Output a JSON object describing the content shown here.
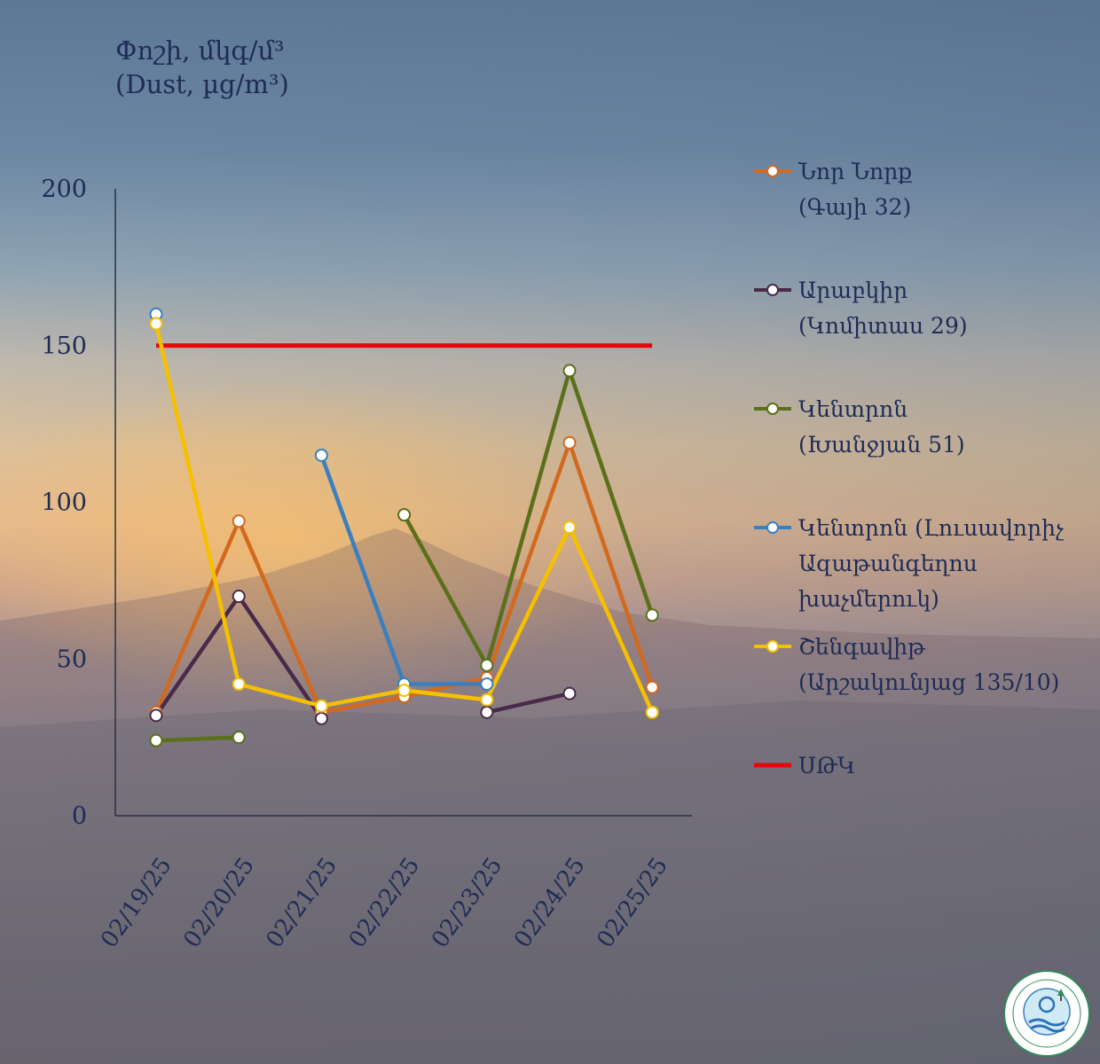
{
  "ylabel": {
    "line1": "Փոշի, մկգ/մ³",
    "line2": "(Dust, µg/m³)"
  },
  "chart_data": {
    "type": "line",
    "title": "",
    "ylabel": "Փոշի, մկգ/մ³ (Dust, µg/m³)",
    "xlabel": "",
    "ylim": [
      0,
      200
    ],
    "yticks": [
      0,
      50,
      100,
      150,
      200
    ],
    "categories": [
      "02/19/25",
      "02/20/25",
      "02/21/25",
      "02/22/25",
      "02/23/25",
      "02/24/25",
      "02/25/25"
    ],
    "grid": false,
    "legend_position": "right",
    "series": [
      {
        "name": "Նոր Նորք (Գայի 32)",
        "color": "#d2691e",
        "values": [
          33,
          94,
          33,
          38,
          44,
          119,
          41
        ]
      },
      {
        "name": "Արաբկիր (Կոմիտաս 29)",
        "color": "#4a2a4a",
        "values": [
          32,
          70,
          31,
          null,
          33,
          39,
          null
        ]
      },
      {
        "name": "Կենտրոն (Խանջյան 51)",
        "color": "#5c6f1a",
        "values": [
          24,
          25,
          null,
          96,
          48,
          142,
          64
        ]
      },
      {
        "name": "Կենտրոն (Լուսավորիչ Ազաթանգեղոս խաչմերուկ)",
        "color": "#3a7fc0",
        "values": [
          160,
          null,
          115,
          42,
          42,
          null,
          null
        ]
      },
      {
        "name": "Շենգավիթ (Արշակունյաց 135/10)",
        "color": "#f6c000",
        "values": [
          157,
          42,
          35,
          40,
          37,
          92,
          33
        ]
      }
    ],
    "threshold": {
      "name": "ՍԹԿ",
      "value": 150,
      "color": "#e5070b",
      "x_from": "02/19/25",
      "x_to": "02/25/25"
    }
  },
  "legend": [
    {
      "text": "Նոր Նորք\n(Գայի 32)",
      "color": "#d2691e",
      "type": "line-marker"
    },
    {
      "text": "Արաբկիր\n(Կոմիտաս 29)",
      "color": "#4a2a4a",
      "type": "line-marker"
    },
    {
      "text": "Կենտրոն\n(Խանջյան 51)",
      "color": "#5c6f1a",
      "type": "line-marker"
    },
    {
      "text": "Կենտրոն (Լուսավորիչ\nԱզաթանգեղոս\nխաչմերուկ)",
      "color": "#3a7fc0",
      "type": "line-marker"
    },
    {
      "text": "Շենգավիթ\n(Արշակունյաց 135/10)",
      "color": "#f6c000",
      "type": "line-marker"
    },
    {
      "text": "ՍԹԿ",
      "color": "#e5070b",
      "type": "line"
    }
  ],
  "logo": {
    "icon": "hydromet-center-seal-icon"
  }
}
